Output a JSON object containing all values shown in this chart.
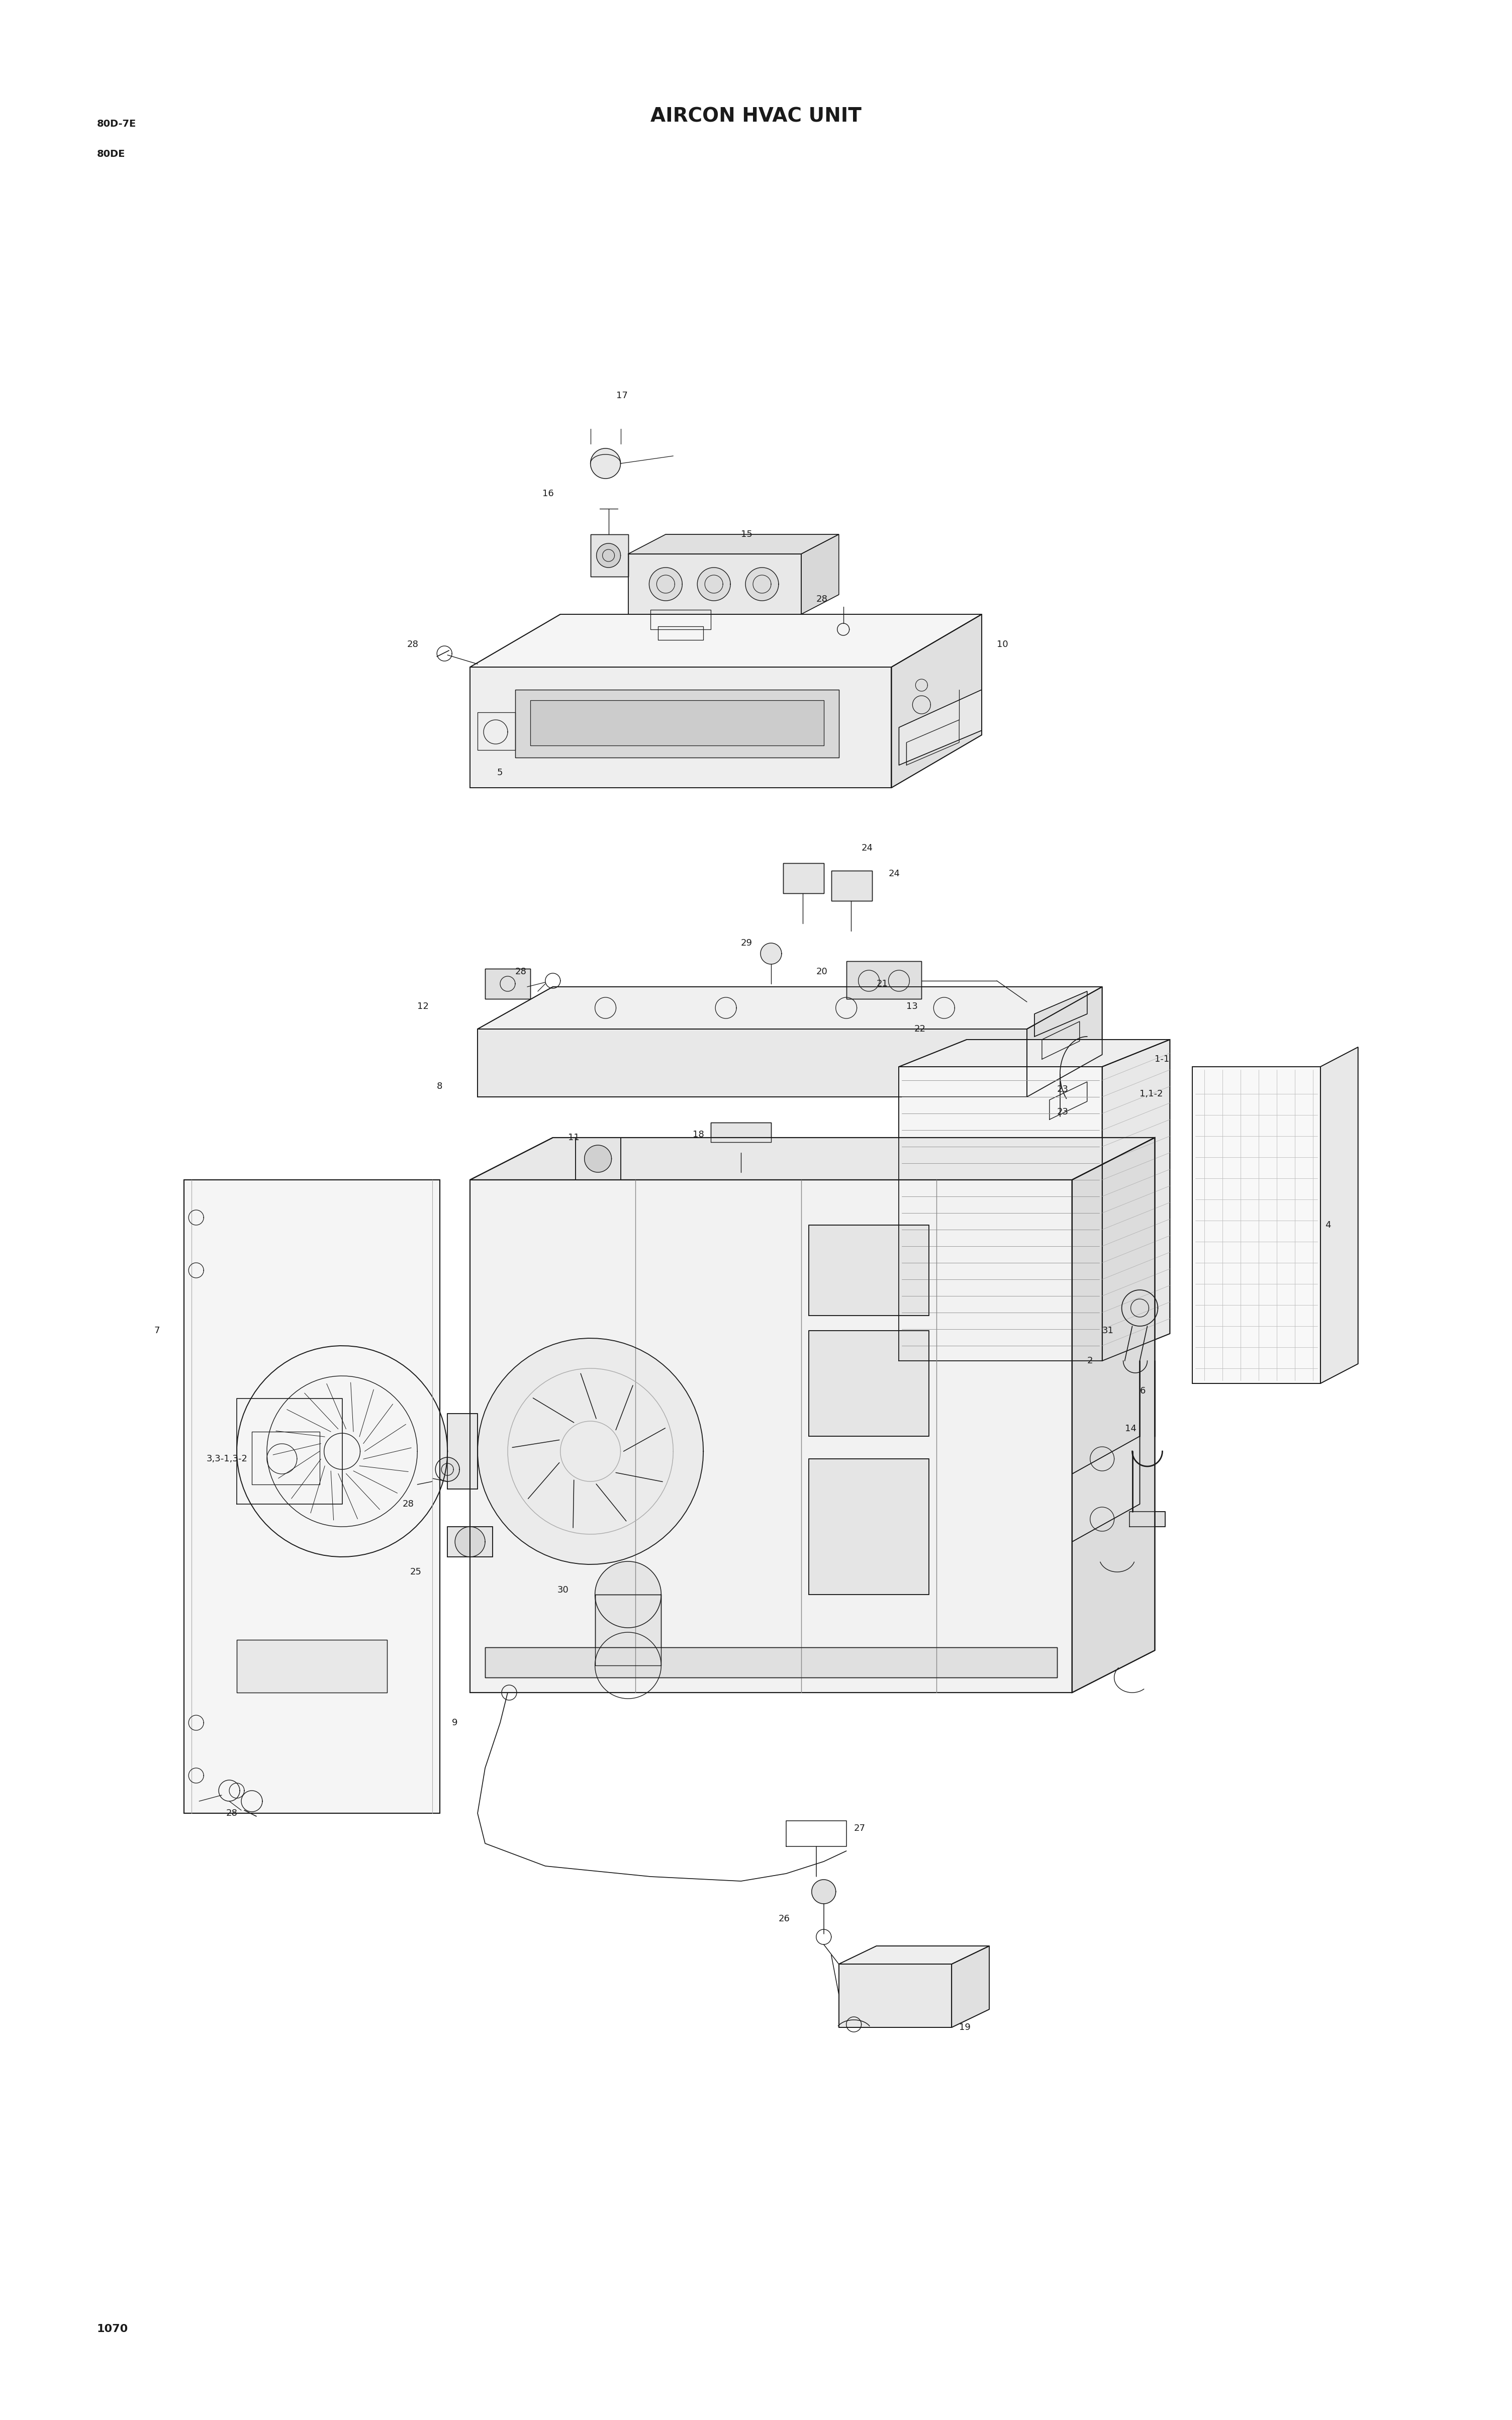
{
  "title": "AIRCON HVAC UNIT",
  "model_line1": "80D-7E",
  "model_line2": "80DE",
  "page_number": "1070",
  "background_color": "#ffffff",
  "line_color": "#1a1a1a",
  "text_color": "#1a1a1a",
  "title_fontsize": 28,
  "model_fontsize": 14,
  "label_fontsize": 13,
  "page_fontsize": 16,
  "fig_width": 30.08,
  "fig_height": 48.14
}
